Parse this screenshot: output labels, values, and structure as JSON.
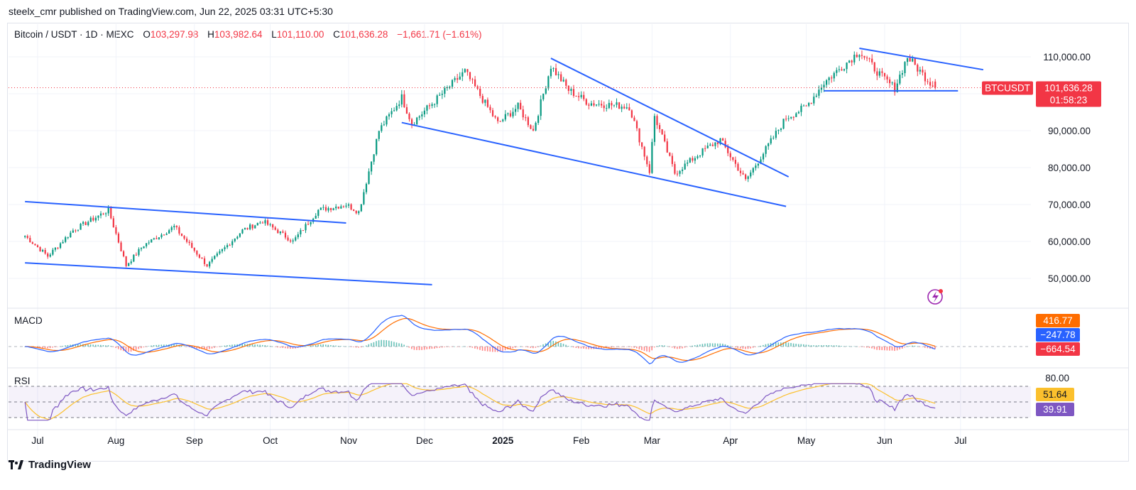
{
  "publish_line": "steelx_cmr published on TradingView.com, Jun 22, 2025 03:31 UTC+5:30",
  "legend": {
    "symbol": "Bitcoin / USDT · 1D · MEXC",
    "open_label": "O",
    "open": "103,297.98",
    "high_label": "H",
    "high": "103,982.64",
    "low_label": "L",
    "low": "101,110.00",
    "close_label": "C",
    "close": "101,636.28",
    "change": "−1,661.71 (−1.61%)"
  },
  "price_tag": {
    "ticker": "BTCUSDT",
    "price": "101,636.28",
    "countdown": "01:58:23"
  },
  "macd": {
    "label": "MACD",
    "values": [
      "416.77",
      "−247.78",
      "−664.54"
    ],
    "colors": [
      "#ff6d00",
      "#2962ff",
      "#f23645"
    ]
  },
  "rsi": {
    "label": "RSI",
    "upper": "80.00",
    "values": [
      "51.64",
      "39.91"
    ],
    "colors": [
      "#fbc02d",
      "#7e57c2"
    ]
  },
  "footer": {
    "brand": "TradingView"
  },
  "colors": {
    "up": "#089981",
    "down": "#f23645",
    "trendline": "#2962ff",
    "macd_line": "#2962ff",
    "signal_line": "#ff6d00",
    "rsi_line": "#7e57c2",
    "rsi_ma": "#fbc02d"
  },
  "chart_data": {
    "type": "candlestick",
    "symbol": "Bitcoin / USDT",
    "interval": "1D",
    "x_ticks": [
      "Jul",
      "Aug",
      "Sep",
      "Oct",
      "Nov",
      "Dec",
      "2025",
      "Feb",
      "Mar",
      "Apr",
      "May",
      "Jun",
      "Jul"
    ],
    "x_tick_dates": [
      "2024-07-01",
      "2024-08-01",
      "2024-09-01",
      "2024-10-01",
      "2024-11-01",
      "2024-12-01",
      "2025-01-01",
      "2025-02-01",
      "2025-03-01",
      "2025-04-01",
      "2025-05-01",
      "2025-06-01",
      "2025-07-01"
    ],
    "y_ticks": [
      "50,000.00",
      "60,000.00",
      "70,000.00",
      "80,000.00",
      "90,000.00",
      "100,000.00",
      "110,000.00"
    ],
    "y_tick_values": [
      50000,
      60000,
      70000,
      80000,
      90000,
      100000,
      110000
    ],
    "ylim": [
      45000,
      115000
    ],
    "last_price": 101636.28,
    "ohlc_last": {
      "open": 103297.98,
      "high": 103982.64,
      "low": 101110.0,
      "close": 101636.28
    },
    "price_path": [
      [
        "2024-06-26",
        61500
      ],
      [
        "2024-07-05",
        56000
      ],
      [
        "2024-07-15",
        63000
      ],
      [
        "2024-07-29",
        68500
      ],
      [
        "2024-08-05",
        53500
      ],
      [
        "2024-08-12",
        59000
      ],
      [
        "2024-08-24",
        64000
      ],
      [
        "2024-09-06",
        53500
      ],
      [
        "2024-09-20",
        63000
      ],
      [
        "2024-09-28",
        65500
      ],
      [
        "2024-10-10",
        60000
      ],
      [
        "2024-10-20",
        68500
      ],
      [
        "2024-10-31",
        70000
      ],
      [
        "2024-11-05",
        68000
      ],
      [
        "2024-11-13",
        90000
      ],
      [
        "2024-11-22",
        99000
      ],
      [
        "2024-11-26",
        92000
      ],
      [
        "2024-12-05",
        98000
      ],
      [
        "2024-12-17",
        106000
      ],
      [
        "2024-12-30",
        92000
      ],
      [
        "2025-01-07",
        96500
      ],
      [
        "2025-01-13",
        90000
      ],
      [
        "2025-01-20",
        107500
      ],
      [
        "2025-01-27",
        101000
      ],
      [
        "2025-02-04",
        97500
      ],
      [
        "2025-02-20",
        96500
      ],
      [
        "2025-02-28",
        79000
      ],
      [
        "2025-03-02",
        94000
      ],
      [
        "2025-03-10",
        78500
      ],
      [
        "2025-03-22",
        85000
      ],
      [
        "2025-03-28",
        87500
      ],
      [
        "2025-04-07",
        76500
      ],
      [
        "2025-04-15",
        85000
      ],
      [
        "2025-04-23",
        93500
      ],
      [
        "2025-05-01",
        96500
      ],
      [
        "2025-05-08",
        103000
      ],
      [
        "2025-05-22",
        111500
      ],
      [
        "2025-05-31",
        104500
      ],
      [
        "2025-06-05",
        101500
      ],
      [
        "2025-06-10",
        110000
      ],
      [
        "2025-06-17",
        104500
      ],
      [
        "2025-06-21",
        101636
      ]
    ],
    "trendlines": [
      {
        "from": [
          "2024-06-26",
          70800
        ],
        "to": [
          "2024-10-31",
          65000
        ]
      },
      {
        "from": [
          "2024-06-26",
          54200
        ],
        "to": [
          "2024-12-04",
          48300
        ]
      },
      {
        "from": [
          "2024-11-22",
          92200
        ],
        "to": [
          "2025-04-23",
          69500
        ]
      },
      {
        "from": [
          "2025-01-20",
          109600
        ],
        "to": [
          "2025-04-24",
          77500
        ]
      },
      {
        "from": [
          "2025-05-22",
          112300
        ],
        "to": [
          "2025-07-10",
          106500
        ]
      },
      {
        "from": [
          "2025-05-08",
          100800
        ],
        "to": [
          "2025-06-30",
          100800
        ]
      }
    ]
  }
}
